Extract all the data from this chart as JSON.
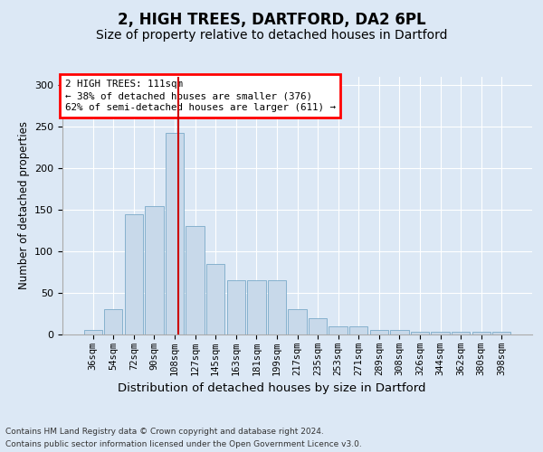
{
  "title": "2, HIGH TREES, DARTFORD, DA2 6PL",
  "subtitle": "Size of property relative to detached houses in Dartford",
  "xlabel": "Distribution of detached houses by size in Dartford",
  "ylabel": "Number of detached properties",
  "categories": [
    "36sqm",
    "54sqm",
    "72sqm",
    "90sqm",
    "108sqm",
    "127sqm",
    "145sqm",
    "163sqm",
    "181sqm",
    "199sqm",
    "217sqm",
    "235sqm",
    "253sqm",
    "271sqm",
    "289sqm",
    "308sqm",
    "326sqm",
    "344sqm",
    "362sqm",
    "380sqm",
    "398sqm"
  ],
  "values": [
    5,
    30,
    145,
    155,
    243,
    130,
    85,
    65,
    65,
    65,
    30,
    20,
    10,
    10,
    5,
    5,
    3,
    3,
    3,
    3,
    3
  ],
  "bar_color": "#c8d9ea",
  "bar_edge_color": "#7aaac8",
  "vline_x": 4.17,
  "vline_color": "#cc0000",
  "annotation_line1": "2 HIGH TREES: 111sqm",
  "annotation_line2": "← 38% of detached houses are smaller (376)",
  "annotation_line3": "62% of semi-detached houses are larger (611) →",
  "background_color": "#dce8f5",
  "plot_bg_color": "#dce8f5",
  "footer1": "Contains HM Land Registry data © Crown copyright and database right 2024.",
  "footer2": "Contains public sector information licensed under the Open Government Licence v3.0.",
  "ylim_max": 310,
  "yticks": [
    0,
    50,
    100,
    150,
    200,
    250,
    300
  ]
}
